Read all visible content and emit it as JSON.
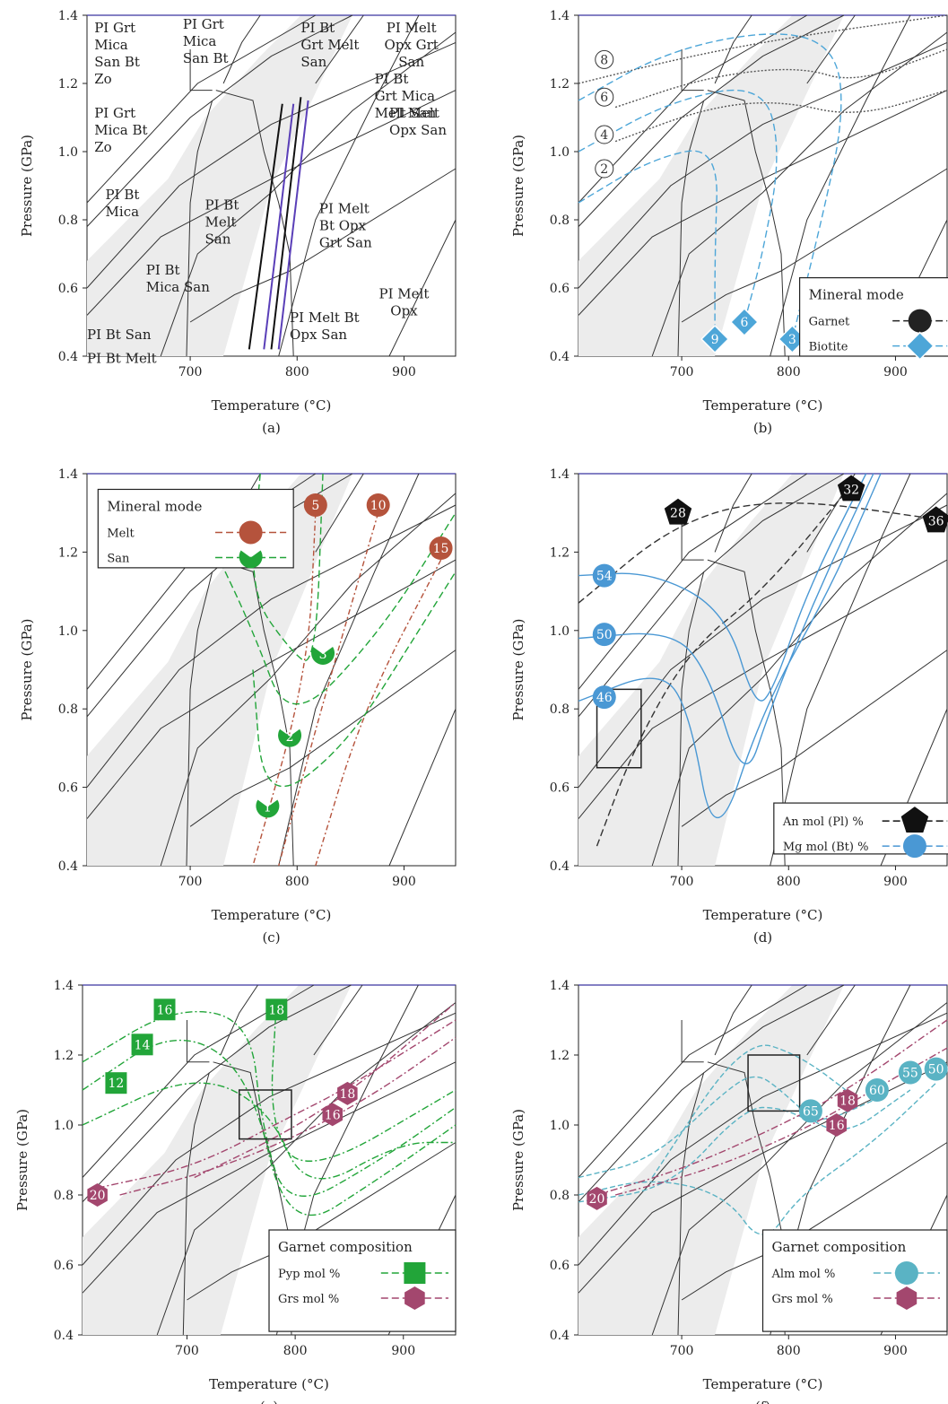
{
  "axes": {
    "xlabel": "Temperature (°C)",
    "ylabel": "Pressure (GPa)",
    "xticks": [
      "700",
      "800",
      "900"
    ],
    "yticks": [
      "0.4",
      "0.6",
      "0.8",
      "1.0",
      "1.2",
      "1.4"
    ]
  },
  "panels": [
    {
      "letter": "(a)",
      "field_labels": [
        [
          "PI Grt",
          "Mica",
          "San Bt",
          "Zo"
        ],
        [
          "PI Grt",
          "Mica",
          "San Bt"
        ],
        [
          "PI Bt",
          "Grt Melt",
          "San"
        ],
        [
          "PI Melt",
          "Opx Grt",
          "San"
        ],
        [
          "PI Bt",
          "Grt Mica",
          "Melt San"
        ],
        [
          "PI Grt",
          "Mica Bt",
          "Zo"
        ],
        [
          "PI Melt",
          "Opx San"
        ],
        [
          "PI Bt",
          "Mica"
        ],
        [
          "PI Bt",
          "Melt",
          "San"
        ],
        [
          "PI Melt",
          "Bt Opx",
          "Grt San"
        ],
        [
          "PI Bt",
          "Mica San"
        ],
        [
          "PI Melt",
          "Opx"
        ],
        [
          "PI Melt Bt",
          "Opx San"
        ],
        [
          "PI Bt San"
        ],
        [
          "PI Bt Melt"
        ]
      ]
    },
    {
      "letter": "(b)",
      "legend": {
        "title": "Mineral mode",
        "entries": [
          {
            "name": "Garnet",
            "color": "#222222",
            "marker": "circle"
          },
          {
            "name": "Biotite",
            "color": "#4da6d8",
            "marker": "diamond"
          }
        ]
      },
      "markers": [
        {
          "series": "Garnet",
          "label": "8"
        },
        {
          "series": "Garnet",
          "label": "6"
        },
        {
          "series": "Garnet",
          "label": "4"
        },
        {
          "series": "Garnet",
          "label": "2"
        },
        {
          "series": "Biotite",
          "label": "9"
        },
        {
          "series": "Biotite",
          "label": "6"
        },
        {
          "series": "Biotite",
          "label": "3"
        }
      ]
    },
    {
      "letter": "(c)",
      "legend": {
        "title": "Mineral mode",
        "entries": [
          {
            "name": "Melt",
            "color": "#b5533c",
            "marker": "circle"
          },
          {
            "name": "San",
            "color": "#22a539",
            "marker": "pacman"
          }
        ]
      },
      "markers": [
        {
          "series": "Melt",
          "label": "5"
        },
        {
          "series": "Melt",
          "label": "10"
        },
        {
          "series": "Melt",
          "label": "15"
        },
        {
          "series": "San",
          "label": "3"
        },
        {
          "series": "San",
          "label": "2"
        },
        {
          "series": "San",
          "label": "1"
        }
      ]
    },
    {
      "letter": "(d)",
      "legend": {
        "title": "",
        "entries": [
          {
            "name": "An mol (Pl) %",
            "color": "#111111",
            "marker": "pentagon"
          },
          {
            "name": "Mg mol (Bt) %",
            "color": "#4a98d4",
            "marker": "circle"
          }
        ]
      },
      "markers": [
        {
          "series": "An",
          "label": "28"
        },
        {
          "series": "An",
          "label": "32"
        },
        {
          "series": "An",
          "label": "36"
        },
        {
          "series": "Mg",
          "label": "54"
        },
        {
          "series": "Mg",
          "label": "50"
        },
        {
          "series": "Mg",
          "label": "46"
        }
      ]
    },
    {
      "letter": "(e)",
      "legend": {
        "title": "Garnet composition",
        "entries": [
          {
            "name": "Pyp mol %",
            "color": "#22a539",
            "marker": "square"
          },
          {
            "name": "Grs mol %",
            "color": "#a3476e",
            "marker": "hexagon"
          }
        ]
      },
      "markers": [
        {
          "series": "Pyp",
          "label": "16"
        },
        {
          "series": "Pyp",
          "label": "18"
        },
        {
          "series": "Pyp",
          "label": "14"
        },
        {
          "series": "Pyp",
          "label": "12"
        },
        {
          "series": "Grs",
          "label": "18"
        },
        {
          "series": "Grs",
          "label": "16"
        },
        {
          "series": "Grs",
          "label": "20"
        }
      ]
    },
    {
      "letter": "(f)",
      "legend": {
        "title": "Garnet composition",
        "entries": [
          {
            "name": "Alm mol %",
            "color": "#5ab3c4",
            "marker": "circle"
          },
          {
            "name": "Grs mol %",
            "color": "#a3476e",
            "marker": "hexagon"
          }
        ]
      },
      "markers": [
        {
          "series": "Grs",
          "label": "18"
        },
        {
          "series": "Grs",
          "label": "16"
        },
        {
          "series": "Grs",
          "label": "20"
        },
        {
          "series": "Alm",
          "label": "55"
        },
        {
          "series": "Alm",
          "label": "50"
        },
        {
          "series": "Alm",
          "label": "60"
        },
        {
          "series": "Alm",
          "label": "65"
        }
      ]
    }
  ]
}
